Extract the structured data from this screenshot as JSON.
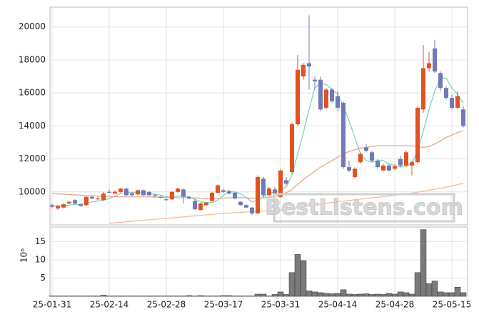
{
  "chart_data": [
    {
      "type": "candlestick",
      "watermark": "BestListens.com",
      "ylim": [
        8000,
        21200
      ],
      "yticks": [
        10000,
        12000,
        14000,
        16000,
        18000,
        20000
      ],
      "grid": true,
      "up_color": "#e0531f",
      "down_color": "#7278b8",
      "open": [
        9200,
        9000,
        9050,
        9300,
        9500,
        9250,
        9200,
        9700,
        9550,
        9500,
        10000,
        9900,
        10000,
        10200,
        9900,
        9850,
        10100,
        10000,
        9800,
        9700,
        9550,
        9550,
        10000,
        10150,
        9700,
        9450,
        8900,
        9200,
        9450,
        9950,
        10100,
        10050,
        9950,
        9400,
        9200,
        9050,
        8700,
        10800,
        9800,
        10150,
        9700,
        10700,
        11200,
        14100,
        17000,
        17800,
        16800,
        16800,
        15100,
        16200,
        15800,
        15400,
        11500,
        10900,
        11800,
        12700,
        12400,
        11900,
        11300,
        11600,
        11400,
        12000,
        11600,
        11600,
        11800,
        15000,
        17500,
        18700,
        17200,
        16300,
        15700,
        15100,
        15000
      ],
      "high": [
        9300,
        9200,
        9300,
        9450,
        9550,
        9300,
        9750,
        9800,
        9700,
        10000,
        10150,
        10100,
        10250,
        10250,
        10000,
        10150,
        10150,
        10050,
        9900,
        9800,
        9650,
        10050,
        10250,
        10200,
        9750,
        9550,
        9350,
        9400,
        10000,
        10450,
        10200,
        10150,
        10000,
        9450,
        9250,
        9100,
        11000,
        10900,
        10300,
        10300,
        11400,
        10900,
        14200,
        18300,
        17800,
        20700,
        17000,
        17000,
        16300,
        16300,
        16100,
        15500,
        11900,
        11500,
        12400,
        12900,
        12500,
        12000,
        11700,
        11700,
        11700,
        12200,
        12500,
        11900,
        15200,
        18900,
        18500,
        19200,
        17300,
        16400,
        15900,
        16100,
        15200
      ],
      "low": [
        9000,
        8900,
        9000,
        9250,
        9250,
        9100,
        9150,
        9550,
        9500,
        9450,
        9900,
        9850,
        9950,
        9750,
        9750,
        9800,
        9750,
        9750,
        9700,
        9600,
        9450,
        9500,
        9950,
        9300,
        9550,
        8900,
        8850,
        9150,
        9400,
        9900,
        9950,
        9850,
        9550,
        9150,
        9000,
        8600,
        8650,
        9700,
        9750,
        9850,
        9650,
        10400,
        11100,
        14000,
        16800,
        16200,
        16200,
        14900,
        15000,
        15400,
        14900,
        11400,
        11200,
        10800,
        11700,
        12400,
        11800,
        11400,
        11250,
        11250,
        11300,
        11500,
        11500,
        11000,
        11700,
        14800,
        17300,
        17200,
        16100,
        15600,
        15000,
        15000,
        13900
      ],
      "close": [
        9100,
        9150,
        9250,
        9400,
        9300,
        9150,
        9700,
        9600,
        9600,
        9900,
        9950,
        10000,
        10200,
        9800,
        9800,
        10100,
        9800,
        9800,
        9750,
        9650,
        9500,
        10000,
        10200,
        9700,
        9600,
        8950,
        9300,
        9350,
        9950,
        10400,
        10000,
        9900,
        9600,
        9200,
        9050,
        8700,
        10900,
        9800,
        10200,
        9900,
        11300,
        10500,
        14100,
        17400,
        17700,
        17600,
        16700,
        15000,
        16200,
        15500,
        15100,
        11500,
        11300,
        11400,
        12300,
        12500,
        11900,
        11500,
        11600,
        11300,
        11550,
        11600,
        12400,
        11800,
        15100,
        17500,
        17800,
        17300,
        16300,
        15700,
        15100,
        15800,
        14000
      ],
      "series": [
        {
          "color": "#7fd3c0",
          "values": [
            9150,
            9150,
            9150,
            9200,
            9250,
            9250,
            9300,
            9400,
            9450,
            9500,
            9600,
            9750,
            9900,
            9950,
            9950,
            9950,
            9950,
            9900,
            9850,
            9800,
            9700,
            9700,
            9750,
            9750,
            9700,
            9550,
            9400,
            9350,
            9350,
            9500,
            9800,
            10000,
            10000,
            9900,
            9650,
            9400,
            9500,
            9700,
            9900,
            10000,
            10100,
            10300,
            11000,
            12300,
            13600,
            15000,
            16300,
            16600,
            16500,
            16200,
            15900,
            15200,
            14300,
            13300,
            12300,
            11900,
            11800,
            11900,
            11900,
            11700,
            11600,
            11500,
            11600,
            11700,
            12500,
            13700,
            15000,
            16100,
            16900,
            16900,
            16300,
            15900,
            15400
          ]
        },
        {
          "color": "#e8a888",
          "values": [
            9900,
            9880,
            9860,
            9840,
            9820,
            9800,
            9780,
            9760,
            9740,
            9730,
            9720,
            9710,
            9700,
            9700,
            9700,
            9700,
            9700,
            9700,
            9690,
            9680,
            9670,
            9660,
            9650,
            9650,
            9650,
            9640,
            9620,
            9600,
            9600,
            9610,
            9620,
            9640,
            9650,
            9650,
            9640,
            9620,
            9620,
            9650,
            9680,
            9720,
            9800,
            9950,
            10150,
            10450,
            10750,
            11000,
            11250,
            11500,
            11700,
            11900,
            12100,
            12300,
            12450,
            12550,
            12650,
            12700,
            12750,
            12800,
            12800,
            12800,
            12800,
            12800,
            12800,
            12800,
            12750,
            12700,
            12750,
            12900,
            13100,
            13300,
            13450,
            13600,
            13700
          ]
        },
        {
          "color": "#f0bc9c",
          "values": [
            null,
            null,
            null,
            null,
            null,
            null,
            null,
            null,
            null,
            null,
            8100,
            8130,
            8160,
            8190,
            8220,
            8250,
            8280,
            8310,
            8340,
            8370,
            8400,
            8430,
            8460,
            8490,
            8520,
            8550,
            8580,
            8610,
            8640,
            8670,
            8700,
            8720,
            8740,
            8760,
            8780,
            8800,
            8820,
            8840,
            8860,
            8880,
            8900,
            8940,
            8990,
            9050,
            9110,
            9160,
            9210,
            9260,
            9310,
            9360,
            9400,
            9440,
            9480,
            9520,
            9560,
            9600,
            9640,
            9680,
            9720,
            9760,
            9800,
            9840,
            9880,
            9930,
            9980,
            10040,
            10100,
            10160,
            10220,
            10280,
            10360,
            10440,
            10520
          ]
        }
      ]
    },
    {
      "type": "bar",
      "ylabel": "10⁶",
      "color": "#7a7a7a",
      "ylim": [
        0,
        19
      ],
      "yticks": [
        5,
        10,
        15
      ],
      "grid": true,
      "categories": [
        "25-01-31",
        null,
        null,
        null,
        null,
        null,
        null,
        null,
        null,
        null,
        "25-02-14",
        null,
        null,
        null,
        null,
        null,
        null,
        null,
        null,
        null,
        "25-02-28",
        null,
        null,
        null,
        null,
        null,
        null,
        null,
        null,
        null,
        "25-03-17",
        null,
        null,
        null,
        null,
        null,
        null,
        null,
        null,
        null,
        "25-03-31",
        null,
        null,
        null,
        null,
        null,
        null,
        null,
        null,
        null,
        "25-04-14",
        null,
        null,
        null,
        null,
        null,
        null,
        null,
        null,
        null,
        "25-04-28",
        null,
        null,
        null,
        null,
        null,
        null,
        null,
        null,
        null,
        "25-05-15",
        null,
        null
      ],
      "values": [
        0.1,
        0.1,
        0.1,
        0.1,
        0.1,
        0.1,
        0.1,
        0.1,
        0.1,
        0.3,
        0.1,
        0.1,
        0.1,
        0.1,
        0.1,
        0.1,
        0.1,
        0.1,
        0.1,
        0.1,
        0.1,
        0.1,
        0.1,
        0.1,
        0.2,
        0.1,
        0.2,
        0.1,
        0.1,
        0.1,
        0.2,
        0.2,
        0.1,
        0.1,
        0.1,
        0.1,
        0.6,
        0.6,
        0.1,
        0.5,
        1.2,
        0.5,
        6.5,
        11.5,
        9.8,
        1.5,
        1.2,
        1.0,
        0.8,
        0.7,
        0.8,
        1.8,
        0.6,
        0.5,
        0.6,
        0.7,
        0.5,
        0.6,
        0.5,
        0.8,
        0.6,
        1.2,
        1.0,
        0.6,
        6.5,
        18.3,
        3.5,
        4.2,
        1.2,
        1.0,
        1.0,
        2.5,
        1.0
      ]
    }
  ]
}
